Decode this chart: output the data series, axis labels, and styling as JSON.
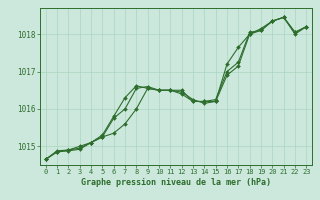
{
  "background_color": "#cce8dc",
  "plot_bg_color": "#cce8dc",
  "grid_color": "#aad4c0",
  "line_color": "#2d6e2d",
  "marker_color": "#2d6e2d",
  "title": "Graphe pression niveau de la mer (hPa)",
  "xlim": [
    -0.5,
    23.5
  ],
  "ylim": [
    1014.5,
    1018.7
  ],
  "yticks": [
    1015,
    1016,
    1017,
    1018
  ],
  "xticks": [
    0,
    1,
    2,
    3,
    4,
    5,
    6,
    7,
    8,
    9,
    10,
    11,
    12,
    13,
    14,
    15,
    16,
    17,
    18,
    19,
    20,
    21,
    22,
    23
  ],
  "line1_x": [
    0,
    1,
    2,
    3,
    4,
    5,
    6,
    7,
    8,
    9,
    10,
    11,
    12,
    13,
    14,
    15,
    16,
    17,
    18,
    19,
    20,
    21,
    22,
    23
  ],
  "line1_y": [
    1014.65,
    1014.85,
    1014.9,
    1014.95,
    1015.1,
    1015.25,
    1015.75,
    1016.0,
    1016.55,
    1016.6,
    1016.5,
    1016.5,
    1016.5,
    1016.2,
    1016.2,
    1016.25,
    1017.0,
    1017.25,
    1018.05,
    1018.1,
    1018.35,
    1018.45,
    1018.05,
    1018.2
  ],
  "line2_x": [
    0,
    1,
    2,
    3,
    4,
    5,
    6,
    7,
    8,
    9,
    10,
    11,
    12,
    13,
    14,
    15,
    16,
    17,
    18,
    19,
    20,
    21,
    22,
    23
  ],
  "line2_y": [
    1014.65,
    1014.85,
    1014.88,
    1014.92,
    1015.1,
    1015.25,
    1015.35,
    1015.6,
    1016.0,
    1016.55,
    1016.5,
    1016.5,
    1016.45,
    1016.25,
    1016.15,
    1016.2,
    1017.2,
    1017.65,
    1018.0,
    1018.15,
    1018.35,
    1018.45,
    1018.05,
    1018.2
  ],
  "line3_x": [
    0,
    1,
    2,
    3,
    4,
    5,
    6,
    7,
    8,
    9,
    10,
    11,
    12,
    13,
    14,
    15,
    16,
    17,
    18,
    19,
    20,
    21,
    22,
    23
  ],
  "line3_y": [
    1014.65,
    1014.88,
    1014.9,
    1015.0,
    1015.1,
    1015.3,
    1015.8,
    1016.3,
    1016.62,
    1016.55,
    1016.5,
    1016.5,
    1016.4,
    1016.2,
    1016.2,
    1016.2,
    1016.9,
    1017.15,
    1018.0,
    1018.1,
    1018.35,
    1018.45,
    1018.0,
    1018.2
  ]
}
